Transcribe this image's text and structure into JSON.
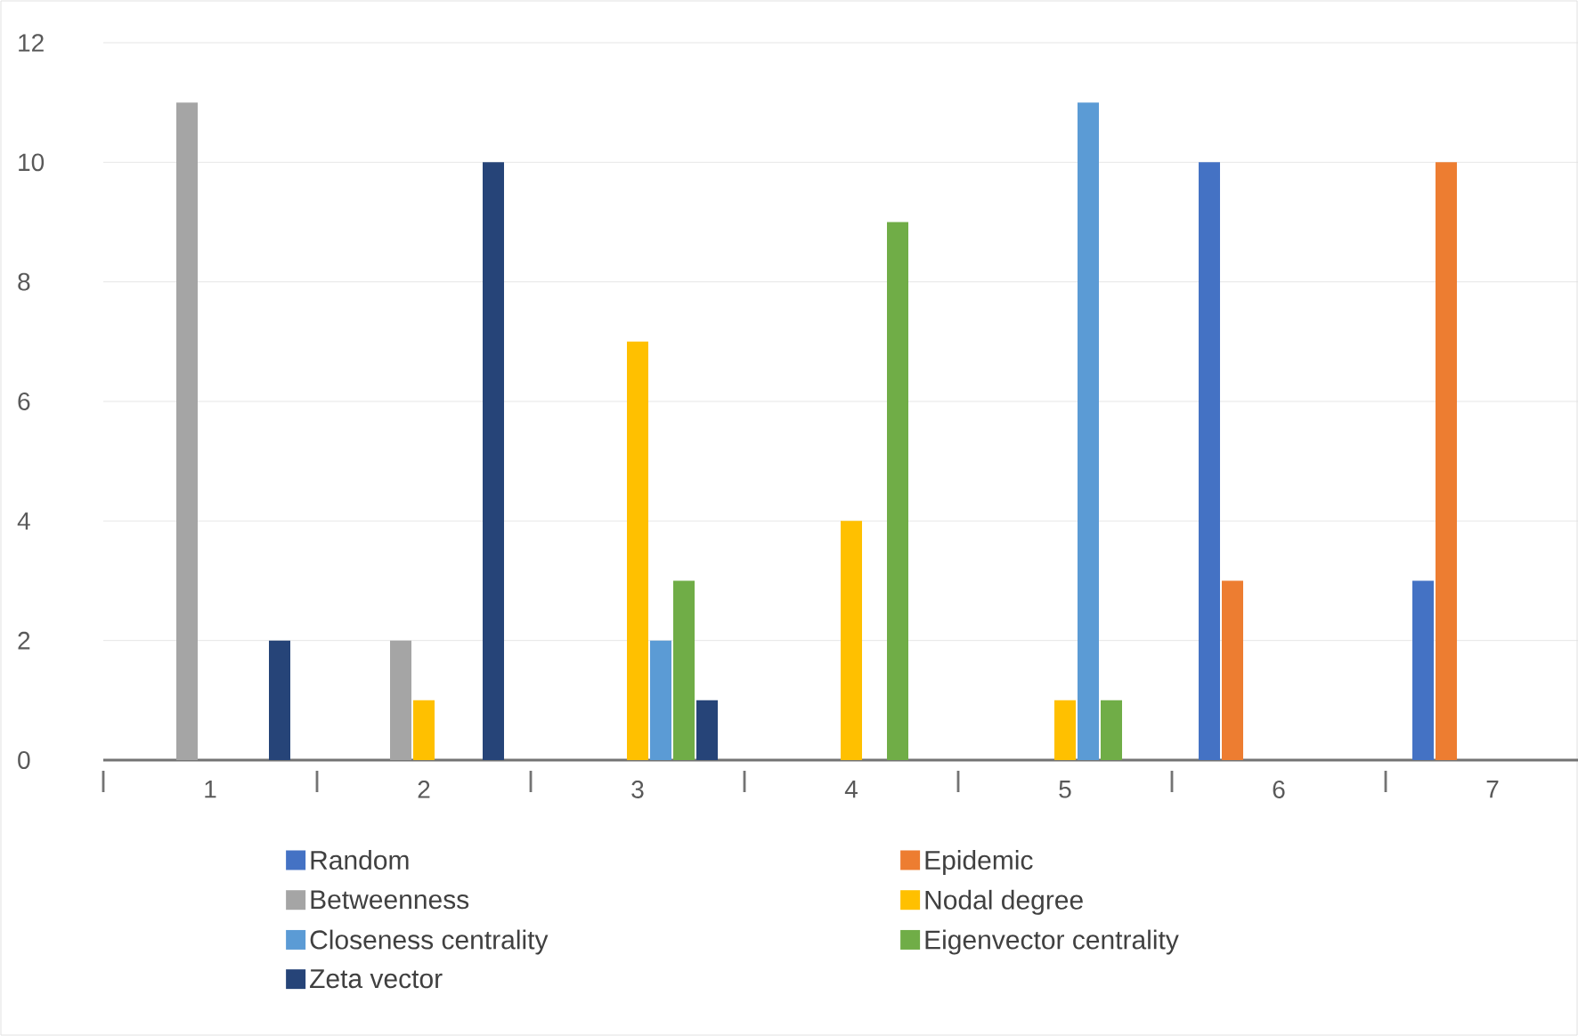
{
  "chart_data": {
    "type": "bar",
    "categories": [
      "1",
      "2",
      "3",
      "4",
      "5",
      "6",
      "7"
    ],
    "series": [
      {
        "name": "Random",
        "color": "#4472c4",
        "values": [
          0,
          0,
          0,
          0,
          0,
          10,
          3
        ]
      },
      {
        "name": "Epidemic",
        "color": "#ed7d31",
        "values": [
          0,
          0,
          0,
          0,
          0,
          3,
          10
        ]
      },
      {
        "name": "Betweenness",
        "color": "#a5a5a5",
        "values": [
          11,
          2,
          0,
          0,
          0,
          0,
          0
        ]
      },
      {
        "name": "Nodal degree",
        "color": "#ffc000",
        "values": [
          0,
          1,
          7,
          4,
          1,
          0,
          0
        ]
      },
      {
        "name": "Closeness centrality",
        "color": "#5b9bd5",
        "values": [
          0,
          0,
          2,
          0,
          11,
          0,
          0
        ]
      },
      {
        "name": "Eigenvector centrality",
        "color": "#70ad47",
        "values": [
          0,
          0,
          3,
          9,
          1,
          0,
          0
        ]
      },
      {
        "name": "Zeta vector",
        "color": "#264478",
        "values": [
          2,
          10,
          1,
          0,
          0,
          0,
          0
        ]
      }
    ],
    "ylim": [
      0,
      12
    ],
    "yticks": [
      0,
      2,
      4,
      6,
      8,
      10,
      12
    ],
    "grid": "y",
    "legend": "bottom"
  }
}
